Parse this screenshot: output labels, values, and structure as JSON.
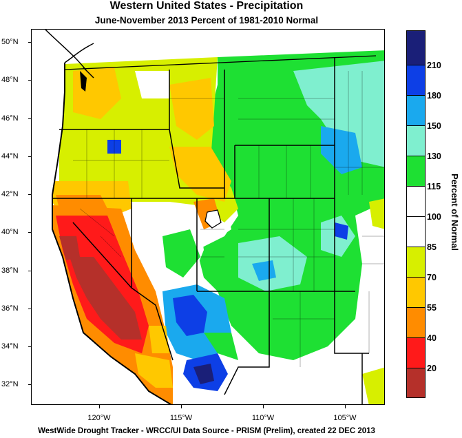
{
  "title": "Western United States - Precipitation",
  "subtitle": "June-November 2013  Percent of 1981-2010 Normal",
  "footer": "WestWide Drought Tracker - WRCC/UI  Data Source - PRISM (Prelim), created 22 DEC 2013",
  "legend": {
    "title": "Percent of Normal",
    "colors": [
      "#1a1f78",
      "#0d3fe6",
      "#1aa9ee",
      "#7fefcf",
      "#1ee033",
      "#ffffff",
      "#ffffff",
      "#d7ef00",
      "#ffc800",
      "#ff8c00",
      "#ff1a1a",
      "#b5302a"
    ],
    "labels": [
      "210",
      "180",
      "150",
      "130",
      "115",
      "100",
      "85",
      "70",
      "55",
      "40",
      "20"
    ]
  },
  "axes": {
    "lat_labels": [
      "50°N",
      "48°N",
      "46°N",
      "44°N",
      "42°N",
      "40°N",
      "38°N",
      "36°N",
      "34°N",
      "32°N"
    ],
    "lon_labels": [
      "120°W",
      "115°W",
      "110°W",
      "105°W"
    ]
  },
  "colors": {
    "red_dark": "#b5302a",
    "red": "#ff1a1a",
    "orange": "#ff8c00",
    "gold": "#ffc800",
    "yellow": "#d7ef00",
    "green": "#1ee033",
    "aqua": "#7fefcf",
    "lightblue": "#1aa9ee",
    "blue": "#0d3fe6",
    "navy": "#1a1f78"
  }
}
